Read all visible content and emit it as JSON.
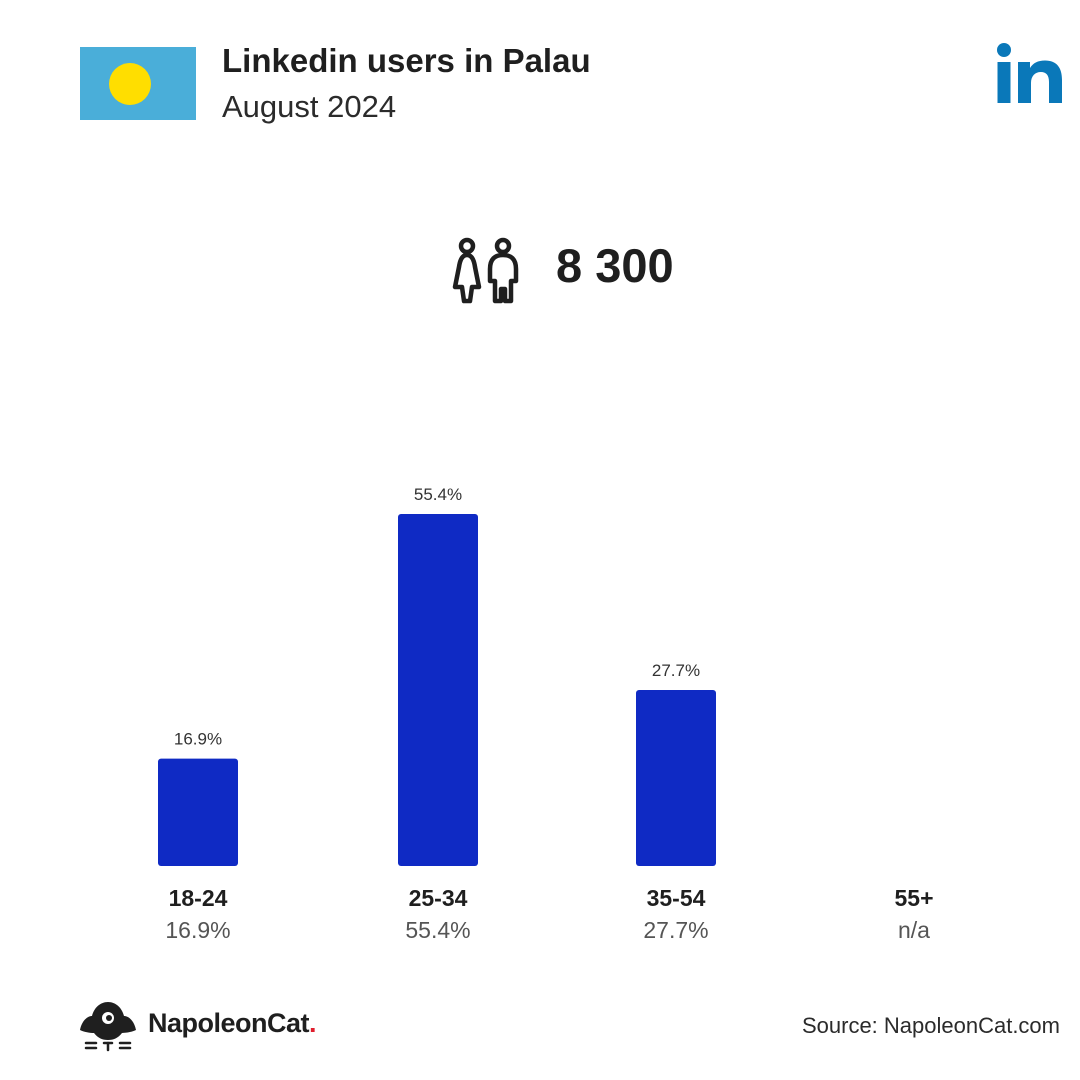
{
  "header": {
    "title": "Linkedin users in Palau",
    "subtitle": "August 2024"
  },
  "total": {
    "value": "8 300",
    "icon": "users-icon"
  },
  "colors": {
    "bar": "#0f2ac4",
    "flag_blue": "#4aaed9",
    "flag_sun": "#ffde00",
    "linkedin_blue": "#0a78b9",
    "brand_dot": "#e01e2d"
  },
  "chart_data": {
    "type": "bar",
    "categories": [
      "18-24",
      "25-34",
      "35-54",
      "55+"
    ],
    "values": [
      16.9,
      55.4,
      27.7,
      null
    ],
    "value_labels": [
      "16.9%",
      "55.4%",
      "27.7%",
      "n/a"
    ],
    "ylim": [
      0,
      55.4
    ],
    "grid": false,
    "legend": "none"
  },
  "footer": {
    "brand": "NapoleonCat",
    "brand_dot": ".",
    "source": "Source: NapoleonCat.com"
  }
}
